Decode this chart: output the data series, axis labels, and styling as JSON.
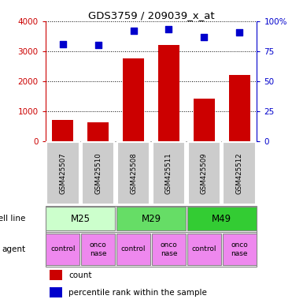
{
  "title": "GDS3759 / 209039_x_at",
  "samples": [
    "GSM425507",
    "GSM425510",
    "GSM425508",
    "GSM425511",
    "GSM425509",
    "GSM425512"
  ],
  "counts": [
    700,
    620,
    2750,
    3200,
    1420,
    2200
  ],
  "percentile_ranks": [
    81,
    80,
    92,
    93,
    87,
    91
  ],
  "bar_color": "#cc0000",
  "dot_color": "#0000cc",
  "ylim_left": [
    0,
    4000
  ],
  "ylim_right": [
    0,
    100
  ],
  "yticks_left": [
    0,
    1000,
    2000,
    3000,
    4000
  ],
  "yticks_right": [
    0,
    25,
    50,
    75,
    100
  ],
  "ytick_labels_right": [
    "0",
    "25",
    "50",
    "75",
    "100%"
  ],
  "cell_lines": [
    {
      "label": "M25",
      "span": [
        0,
        2
      ],
      "color": "#ccffcc"
    },
    {
      "label": "M29",
      "span": [
        2,
        4
      ],
      "color": "#66dd66"
    },
    {
      "label": "M49",
      "span": [
        4,
        6
      ],
      "color": "#33cc33"
    }
  ],
  "agent_labels": [
    "control",
    "onco\nnase",
    "control",
    "onco\nnase",
    "control",
    "onco\nnase"
  ],
  "agent_color": "#ee88ee",
  "sample_box_color": "#cccccc",
  "left_axis_color": "#cc0000",
  "right_axis_color": "#0000cc",
  "legend_count_label": "count",
  "legend_pct_label": "percentile rank within the sample",
  "cell_line_label": "cell line",
  "agent_label": "agent",
  "background_color": "#ffffff"
}
